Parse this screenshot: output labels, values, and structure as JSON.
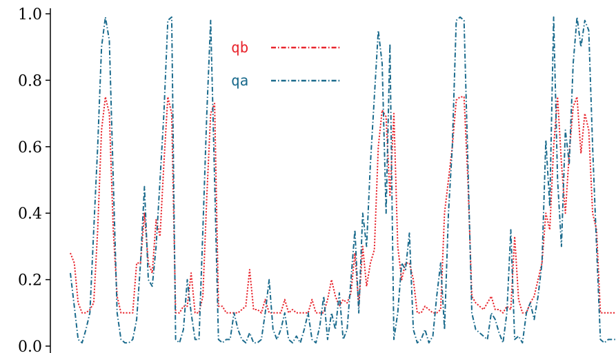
{
  "chart_data": {
    "type": "line",
    "title": "",
    "xlabel": "",
    "ylabel": "",
    "ylim": [
      0.0,
      1.0
    ],
    "yticks": [
      "0.0",
      "0.2",
      "0.4",
      "0.6",
      "0.8",
      "1.0"
    ],
    "grid": false,
    "legend_position": "top-center",
    "series": [
      {
        "name": "qb",
        "color": "#e8252d",
        "style": "dotted",
        "values": [
          0.28,
          0.25,
          0.13,
          0.1,
          0.1,
          0.11,
          0.13,
          0.35,
          0.65,
          0.75,
          0.7,
          0.35,
          0.15,
          0.1,
          0.1,
          0.1,
          0.1,
          0.25,
          0.25,
          0.4,
          0.25,
          0.22,
          0.38,
          0.33,
          0.55,
          0.75,
          0.7,
          0.1,
          0.1,
          0.12,
          0.12,
          0.22,
          0.1,
          0.1,
          0.15,
          0.45,
          0.7,
          0.73,
          0.12,
          0.12,
          0.1,
          0.1,
          0.1,
          0.1,
          0.11,
          0.12,
          0.23,
          0.11,
          0.11,
          0.1,
          0.14,
          0.1,
          0.1,
          0.1,
          0.1,
          0.14,
          0.1,
          0.11,
          0.1,
          0.1,
          0.1,
          0.1,
          0.14,
          0.1,
          0.1,
          0.1,
          0.14,
          0.2,
          0.15,
          0.12,
          0.14,
          0.13,
          0.16,
          0.28,
          0.12,
          0.3,
          0.18,
          0.25,
          0.29,
          0.6,
          0.71,
          0.69,
          0.45,
          0.7,
          0.3,
          0.2,
          0.25,
          0.25,
          0.2,
          0.1,
          0.1,
          0.12,
          0.11,
          0.1,
          0.1,
          0.11,
          0.4,
          0.5,
          0.6,
          0.74,
          0.75,
          0.75,
          0.5,
          0.15,
          0.13,
          0.12,
          0.11,
          0.13,
          0.15,
          0.11,
          0.11,
          0.1,
          0.12,
          0.11,
          0.33,
          0.14,
          0.1,
          0.1,
          0.13,
          0.15,
          0.2,
          0.25,
          0.4,
          0.35,
          0.6,
          0.75,
          0.55,
          0.4,
          0.58,
          0.72,
          0.75,
          0.58,
          0.7,
          0.65,
          0.4,
          0.35,
          0.1,
          0.1,
          0.1,
          0.1,
          0.1
        ]
      },
      {
        "name": "qa",
        "color": "#1a6a8c",
        "style": "dash-dot",
        "values": [
          0.22,
          0.12,
          0.02,
          0.01,
          0.05,
          0.1,
          0.35,
          0.6,
          0.9,
          0.99,
          0.92,
          0.5,
          0.1,
          0.02,
          0.01,
          0.01,
          0.02,
          0.08,
          0.25,
          0.48,
          0.2,
          0.18,
          0.3,
          0.5,
          0.7,
          0.98,
          0.99,
          0.02,
          0.01,
          0.05,
          0.2,
          0.1,
          0.02,
          0.02,
          0.35,
          0.7,
          0.98,
          0.5,
          0.02,
          0.01,
          0.02,
          0.02,
          0.1,
          0.05,
          0.02,
          0.01,
          0.04,
          0.01,
          0.01,
          0.02,
          0.1,
          0.2,
          0.05,
          0.02,
          0.05,
          0.1,
          0.02,
          0.01,
          0.03,
          0.01,
          0.05,
          0.1,
          0.02,
          0.01,
          0.06,
          0.15,
          0.02,
          0.1,
          0.05,
          0.16,
          0.02,
          0.05,
          0.2,
          0.35,
          0.1,
          0.4,
          0.3,
          0.55,
          0.75,
          0.95,
          0.85,
          0.4,
          0.91,
          0.02,
          0.1,
          0.25,
          0.23,
          0.34,
          0.05,
          0.01,
          0.02,
          0.05,
          0.01,
          0.03,
          0.15,
          0.25,
          0.05,
          0.4,
          0.6,
          0.98,
          0.99,
          0.98,
          0.55,
          0.1,
          0.05,
          0.04,
          0.03,
          0.02,
          0.1,
          0.08,
          0.04,
          0.01,
          0.1,
          0.35,
          0.02,
          0.03,
          0.01,
          0.1,
          0.13,
          0.08,
          0.15,
          0.25,
          0.62,
          0.42,
          0.99,
          0.5,
          0.3,
          0.65,
          0.55,
          0.85,
          0.99,
          0.9,
          0.98,
          0.95,
          0.6,
          0.3,
          0.02,
          0.01,
          0.02,
          0.02,
          0.02
        ]
      }
    ]
  }
}
